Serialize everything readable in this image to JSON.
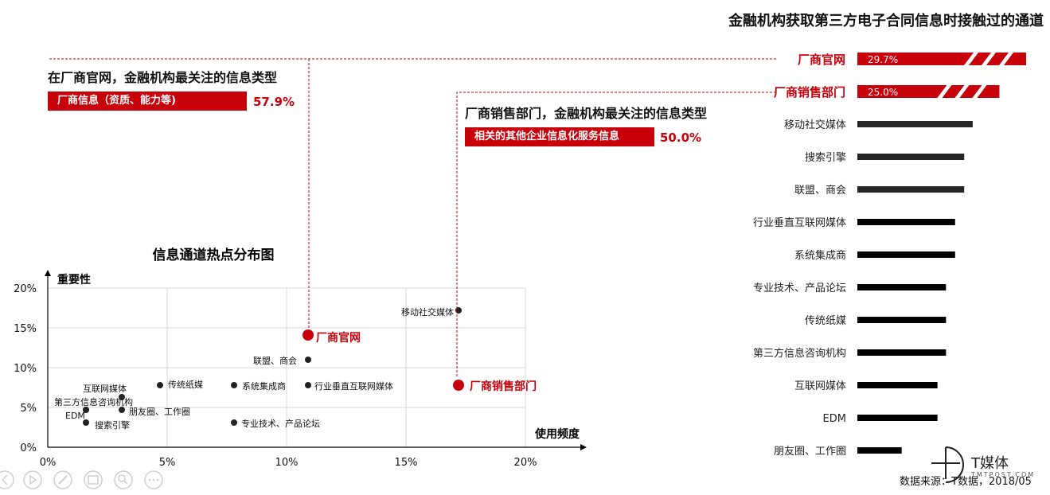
{
  "page_title": "金融机构获取第三方电子合同信息时接触过的通道",
  "note_website": {
    "title": "在厂商官网，金融机构最关注的信息类型",
    "bar_label": "厂商信息（资质、能力等)",
    "value_label": "57.9%",
    "value": 57.9
  },
  "note_sales": {
    "title": "厂商销售部门，金融机构最关注的信息类型",
    "bar_label": "相关的其他企业信息化服务信息",
    "value_label": "50.0%",
    "value": 50.0
  },
  "footer": {
    "source": "数据来源：T数据，2018/05",
    "logo_text": "T媒体",
    "logo_sub": "TMTPOST.COM"
  },
  "colors": {
    "accent": "#c8000a",
    "bar_dark": "#000000",
    "dot": "#222222",
    "grid": "#d9d9d9"
  },
  "chart_data": [
    {
      "type": "scatter",
      "title": "信息通道热点分布图",
      "xlabel": "使用频度",
      "ylabel": "重要性",
      "xlim": [
        0,
        20
      ],
      "ylim": [
        0,
        20
      ],
      "x_ticks": [
        "0%",
        "5%",
        "10%",
        "15%",
        "20%"
      ],
      "y_ticks": [
        "0%",
        "5%",
        "10%",
        "15%",
        "20%"
      ],
      "grid": true,
      "points": [
        {
          "label": "移动社交媒体",
          "x": 17.2,
          "y": 17.2,
          "highlight": false
        },
        {
          "label": "厂商官网",
          "x": 10.9,
          "y": 14.1,
          "highlight": true
        },
        {
          "label": "联盟、商会",
          "x": 10.9,
          "y": 11.0,
          "highlight": false
        },
        {
          "label": "厂商销售部门",
          "x": 17.2,
          "y": 7.8,
          "highlight": true
        },
        {
          "label": "行业垂直互联网媒体",
          "x": 10.9,
          "y": 7.8,
          "highlight": false
        },
        {
          "label": "系统集成商",
          "x": 7.8,
          "y": 7.8,
          "highlight": false
        },
        {
          "label": "传统纸媒",
          "x": 4.7,
          "y": 7.8,
          "highlight": false
        },
        {
          "label": "互联网媒体",
          "x": 3.1,
          "y": 6.3,
          "highlight": false
        },
        {
          "label": "第三方信息咨询机构",
          "x": 1.6,
          "y": 4.7,
          "highlight": false
        },
        {
          "label": "朋友圈、工作圈",
          "x": 3.1,
          "y": 4.7,
          "highlight": false
        },
        {
          "label": "EDM",
          "x": 1.6,
          "y": 4.7,
          "highlight": false
        },
        {
          "label": "搜索引擎",
          "x": 1.6,
          "y": 3.1,
          "highlight": false
        },
        {
          "label": "专业技术、产品论坛",
          "x": 7.8,
          "y": 3.1,
          "highlight": false
        }
      ]
    },
    {
      "type": "bar",
      "orientation": "horizontal",
      "title": "金融机构获取第三方电子合同信息时接触过的通道",
      "categories": [
        "厂商官网",
        "厂商销售部门",
        "移动社交媒体",
        "搜索引擎",
        "联盟、商会",
        "行业垂直互联网媒体",
        "系统集成商",
        "专业技术、产品论坛",
        "传统纸媒",
        "第三方信息咨询机构",
        "互联网媒体",
        "EDM",
        "朋友圈、工作圈"
      ],
      "values": [
        29.7,
        25.0,
        20.3,
        18.8,
        18.8,
        17.2,
        17.2,
        15.6,
        15.6,
        15.6,
        14.1,
        14.1,
        7.8
      ],
      "value_labels": [
        "29.7%",
        "25.0%",
        "",
        "",
        "",
        "",
        "",
        "",
        "",
        "",
        "",
        "",
        ""
      ],
      "highlighted": [
        true,
        true,
        false,
        false,
        false,
        false,
        false,
        false,
        false,
        false,
        false,
        false,
        false
      ]
    }
  ]
}
